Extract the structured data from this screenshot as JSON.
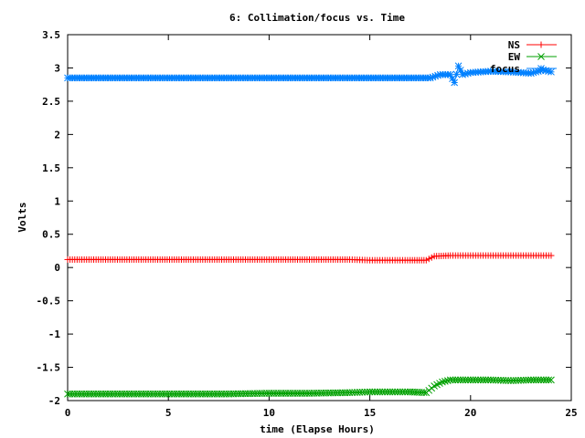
{
  "chart_data": {
    "type": "line",
    "title": "6: Collimation/focus vs. Time",
    "xlabel": "time (Elapse Hours)",
    "ylabel": "Volts",
    "xlim": [
      0,
      25
    ],
    "ylim": [
      -2,
      3.5
    ],
    "x_ticks": [
      0,
      5,
      10,
      15,
      20,
      25
    ],
    "y_ticks": [
      -2,
      -1.5,
      -1,
      -0.5,
      0,
      0.5,
      1,
      1.5,
      2,
      2.5,
      3,
      3.5
    ],
    "x_tick_labels": [
      "0",
      "5",
      "10",
      "15",
      "20",
      "25"
    ],
    "y_tick_labels": [
      "-2",
      "-1.5",
      "-1",
      "-0.5",
      "0",
      "0.5",
      "1",
      "1.5",
      "2",
      "2.5",
      "3",
      "3.5"
    ],
    "grid": false,
    "legend_position": "top-right",
    "series": [
      {
        "name": "NS",
        "color": "#ff0000",
        "marker": "plus",
        "points": [
          [
            0,
            0.12
          ],
          [
            2,
            0.12
          ],
          [
            4,
            0.12
          ],
          [
            6,
            0.12
          ],
          [
            8,
            0.12
          ],
          [
            10,
            0.12
          ],
          [
            12,
            0.12
          ],
          [
            14,
            0.12
          ],
          [
            15,
            0.11
          ],
          [
            16,
            0.11
          ],
          [
            17,
            0.11
          ],
          [
            17.8,
            0.11
          ],
          [
            18.2,
            0.17
          ],
          [
            19,
            0.18
          ],
          [
            20,
            0.18
          ],
          [
            21,
            0.18
          ],
          [
            22,
            0.18
          ],
          [
            23,
            0.18
          ],
          [
            24,
            0.18
          ]
        ]
      },
      {
        "name": "EW",
        "color": "#00a000",
        "marker": "cross",
        "points": [
          [
            0,
            -1.9
          ],
          [
            2,
            -1.9
          ],
          [
            4,
            -1.9
          ],
          [
            6,
            -1.9
          ],
          [
            8,
            -1.9
          ],
          [
            10,
            -1.89
          ],
          [
            12,
            -1.89
          ],
          [
            14,
            -1.88
          ],
          [
            15,
            -1.87
          ],
          [
            16,
            -1.87
          ],
          [
            17,
            -1.87
          ],
          [
            17.8,
            -1.88
          ],
          [
            18.2,
            -1.78
          ],
          [
            18.6,
            -1.72
          ],
          [
            19,
            -1.69
          ],
          [
            20,
            -1.69
          ],
          [
            21,
            -1.69
          ],
          [
            22,
            -1.7
          ],
          [
            23,
            -1.69
          ],
          [
            24,
            -1.69
          ]
        ]
      },
      {
        "name": "focus",
        "color": "#0080ff",
        "marker": "star",
        "points": [
          [
            0,
            2.85
          ],
          [
            2,
            2.85
          ],
          [
            4,
            2.85
          ],
          [
            6,
            2.85
          ],
          [
            8,
            2.85
          ],
          [
            10,
            2.85
          ],
          [
            12,
            2.85
          ],
          [
            14,
            2.85
          ],
          [
            16,
            2.85
          ],
          [
            18,
            2.85
          ],
          [
            18.5,
            2.9
          ],
          [
            19,
            2.9
          ],
          [
            19.2,
            2.78
          ],
          [
            19.4,
            3.03
          ],
          [
            19.6,
            2.9
          ],
          [
            20,
            2.93
          ],
          [
            21,
            2.95
          ],
          [
            22,
            2.94
          ],
          [
            23,
            2.92
          ],
          [
            23.6,
            2.97
          ],
          [
            24,
            2.94
          ]
        ]
      }
    ]
  }
}
